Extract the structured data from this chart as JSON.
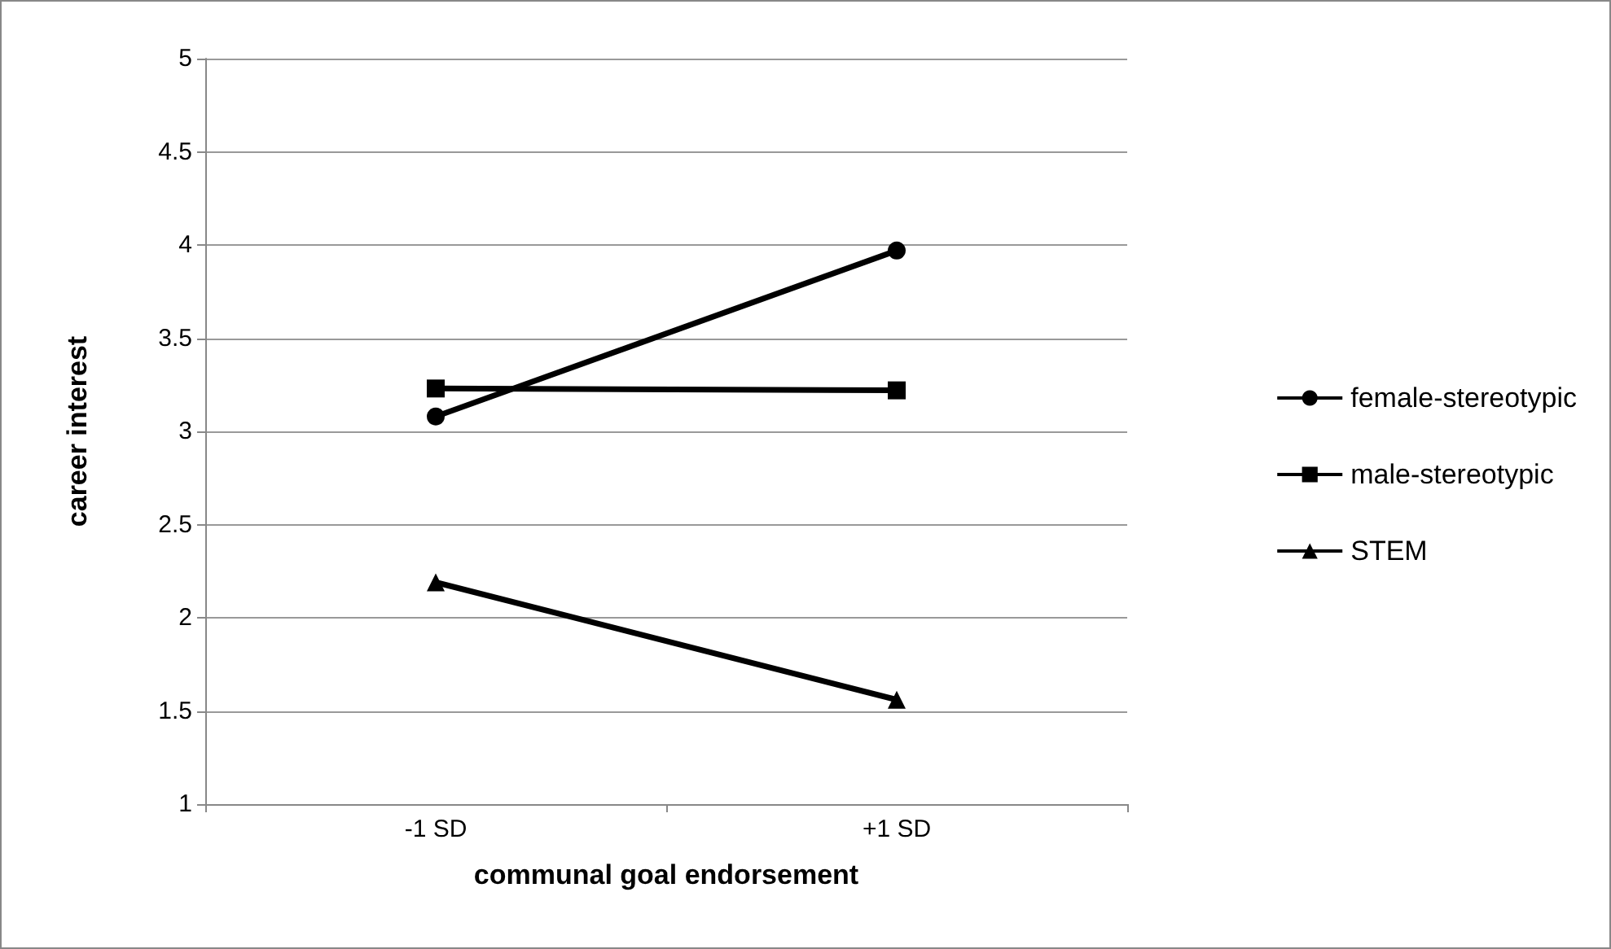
{
  "chart_data": {
    "type": "line",
    "xlabel": "communal goal endorsement",
    "ylabel": "career interest",
    "categories": [
      "-1 SD",
      "+1 SD"
    ],
    "series": [
      {
        "name": "female-stereotypic",
        "color": "#000000",
        "marker": "circle",
        "values": [
          3.08,
          3.97
        ]
      },
      {
        "name": "male-stereotypic",
        "color": "#000000",
        "marker": "square",
        "values": [
          3.23,
          3.22
        ]
      },
      {
        "name": "STEM",
        "color": "#000000",
        "marker": "triangle",
        "values": [
          2.19,
          1.56
        ]
      }
    ],
    "ylim": [
      1,
      5
    ],
    "yticks": [
      1,
      1.5,
      2,
      2.5,
      3,
      3.5,
      4,
      4.5,
      5
    ],
    "grid": "y",
    "legend": "right",
    "line_style": "solid"
  }
}
